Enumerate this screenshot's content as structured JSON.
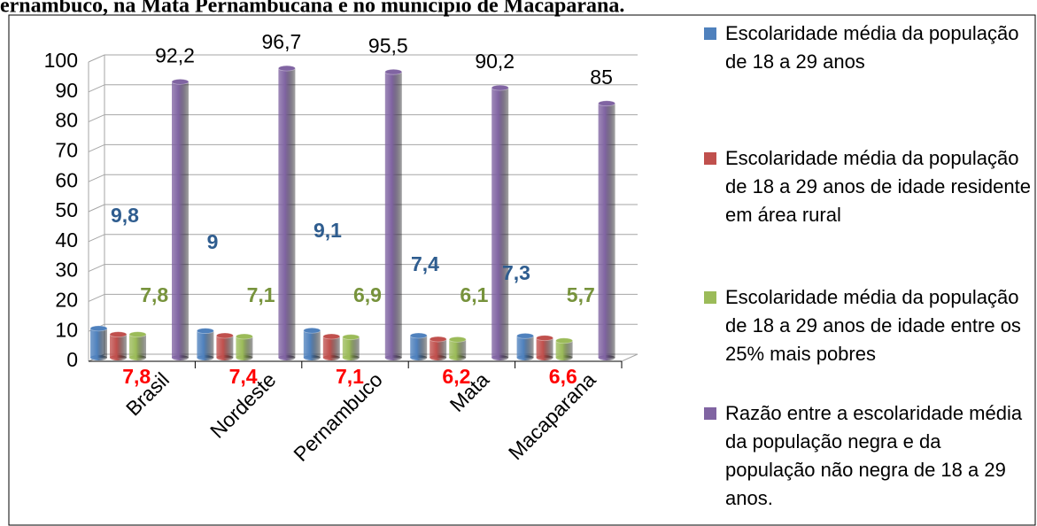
{
  "chart_data": {
    "type": "bar",
    "title": "ernambuco, na Mata Pernambucana e no município de Macaparana.",
    "categories": [
      "Brasil",
      "Nordeste",
      "Pernambuco",
      "Mata",
      "Macaparana"
    ],
    "series": [
      {
        "name": "Escolaridade média da população de 18 a 29 anos",
        "color": "#4f81bd",
        "label_color": "#2f5d8f",
        "values": [
          9.8,
          9,
          9.1,
          7.4,
          7.3
        ],
        "value_labels": [
          "9,8",
          "9",
          "9,1",
          "7,4",
          "7,3"
        ]
      },
      {
        "name": "Escolaridade média da população de 18 a 29 anos de idade residente em área rural",
        "color": "#c0504d",
        "label_color": "#ff0000",
        "values": [
          7.8,
          7.4,
          7.1,
          6.2,
          6.6
        ],
        "value_labels": [
          "7,8",
          "7,4",
          "7,1",
          "6,2",
          "6,6"
        ]
      },
      {
        "name": "Escolaridade média da população de 18 a 29 anos de idade entre os 25% mais pobres",
        "color": "#9bbb59",
        "label_color": "#77933c",
        "values": [
          7.8,
          7.1,
          6.9,
          6.1,
          5.7
        ],
        "value_labels": [
          "7,8",
          "7,1",
          "6,9",
          "6,1",
          "5,7"
        ]
      },
      {
        "name": "Razão entre a escolaridade média da população negra e da população não negra de 18 a 29 anos.",
        "color": "#8064a2",
        "label_color": "#000000",
        "values": [
          92.2,
          96.7,
          95.5,
          90.2,
          85
        ],
        "value_labels": [
          "92,2",
          "96,7",
          "95,5",
          "90,2",
          "85"
        ]
      }
    ],
    "ylim": [
      0,
      100
    ],
    "yticks": [
      0,
      10,
      20,
      30,
      40,
      50,
      60,
      70,
      80,
      90,
      100
    ],
    "grid": true,
    "legend": "right"
  }
}
